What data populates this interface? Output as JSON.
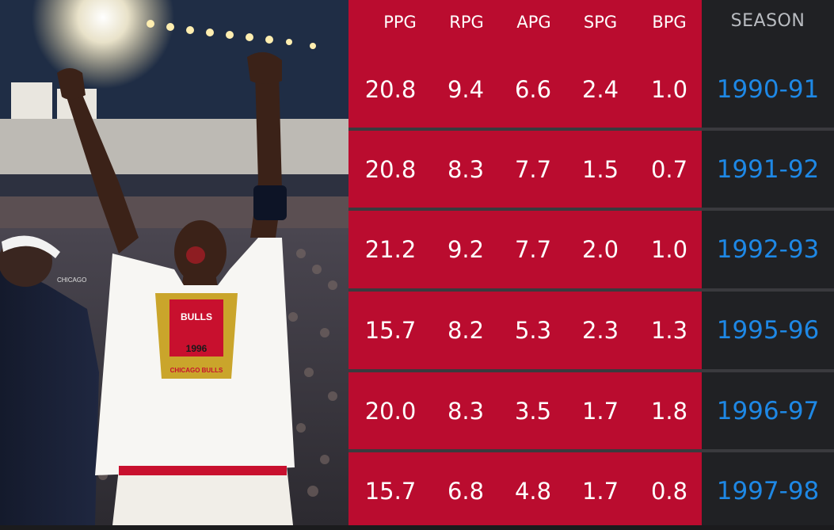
{
  "columns": [
    "PPG",
    "RPG",
    "APG",
    "SPG",
    "BPG",
    "SEASON"
  ],
  "rows": [
    {
      "ppg": "20.8",
      "rpg": "9.4",
      "apg": "6.6",
      "spg": "2.4",
      "bpg": "1.0",
      "season": "1990-91"
    },
    {
      "ppg": "20.8",
      "rpg": "8.3",
      "apg": "7.7",
      "spg": "1.5",
      "bpg": "0.7",
      "season": "1991-92"
    },
    {
      "ppg": "21.2",
      "rpg": "9.2",
      "apg": "7.7",
      "spg": "2.0",
      "bpg": "1.0",
      "season": "1992-93"
    },
    {
      "ppg": "15.7",
      "rpg": "8.2",
      "apg": "5.3",
      "spg": "2.3",
      "bpg": "1.3",
      "season": "1995-96"
    },
    {
      "ppg": "20.0",
      "rpg": "8.3",
      "apg": "3.5",
      "spg": "1.7",
      "bpg": "1.8",
      "season": "1996-97"
    },
    {
      "ppg": "15.7",
      "rpg": "6.8",
      "apg": "4.8",
      "spg": "1.7",
      "bpg": "0.8",
      "season": "1997-98"
    }
  ],
  "photo": {
    "shirt_text_top": "BULLS",
    "shirt_text_mid": "1996",
    "shirt_text_bottom": "CHICAGO BULLS",
    "arena_sign": "CHICAGO"
  },
  "colors": {
    "stat_red": "#ba0c2f",
    "season_bg": "#202124",
    "season_text": "#1e88e5",
    "header_season_text": "#b9bcc1"
  }
}
